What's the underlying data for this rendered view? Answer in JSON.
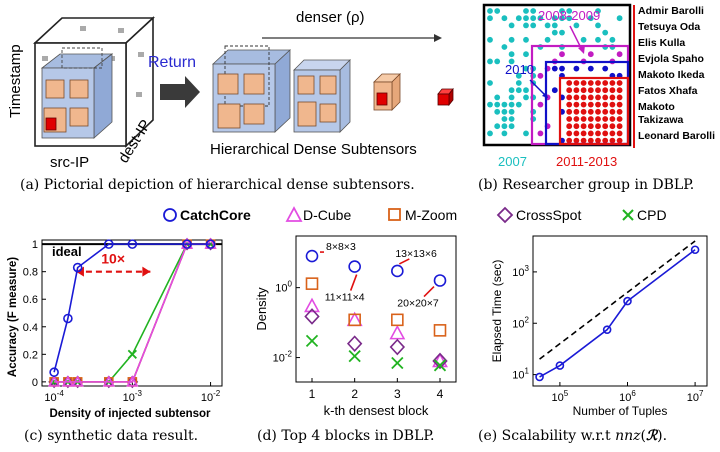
{
  "panel_a": {
    "axis_timestamp": "Timestamp",
    "axis_src": "src-IP",
    "axis_dest": "dest-IP",
    "return_label": "Return",
    "denser_label": "denser (ρ)",
    "subtensors_label": "Hierarchical Dense Subtensors",
    "caption": "(a) Pictorial depiction of hierarchical dense subtensors."
  },
  "panel_b": {
    "names": [
      "Admir Barolli",
      "Tetsuya Oda",
      "Elis Kulla",
      "Evjola Spaho",
      "Makoto Ikeda",
      "Fatos Xhafa",
      "Makoto",
      "Takizawa",
      "Leonard Barolli"
    ],
    "label_2008": "2008-2009",
    "label_2010": "2010",
    "label_2007": "2007",
    "label_2011": "2011-2013",
    "caption": "(b) Researcher group in DBLP.",
    "colors": {
      "teal": "#1abfbf",
      "magenta": "#c21cc2",
      "blue": "#1010c8",
      "red": "#e01010"
    }
  },
  "legend": {
    "items": [
      {
        "label": "CatchCore",
        "color": "#1a1ad6",
        "marker": "circle"
      },
      {
        "label": "D-Cube",
        "color": "#e24ce2",
        "marker": "triangle"
      },
      {
        "label": "M-Zoom",
        "color": "#d9621a",
        "marker": "square"
      },
      {
        "label": "CrossSpot",
        "color": "#7a2a8a",
        "marker": "diamond"
      },
      {
        "label": "CPD",
        "color": "#21b321",
        "marker": "x"
      }
    ]
  },
  "chart_data": [
    {
      "type": "line",
      "title": "",
      "xlabel": "Density of injected subtensor",
      "ylabel": "Accuracy (F measure)",
      "xscale": "log",
      "xlim": [
        7e-05,
        0.014
      ],
      "ylim": [
        -0.03,
        1.03
      ],
      "xticks": [
        "10^{-4}",
        "10^{-3}",
        "10^{-2}"
      ],
      "yticks": [
        "0",
        "0.2",
        "0.4",
        "0.6",
        "0.8",
        "1"
      ],
      "annotations": [
        "ideal",
        "10×"
      ],
      "series": [
        {
          "name": "CatchCore",
          "x": [
            0.0001,
            0.00015,
            0.0002,
            0.0005,
            0.001,
            0.005,
            0.01
          ],
          "y": [
            0.07,
            0.46,
            0.83,
            1,
            1,
            1,
            1
          ]
        },
        {
          "name": "D-Cube",
          "x": [
            0.0001,
            0.00015,
            0.0002,
            0.0005,
            0.001,
            0.005,
            0.01
          ],
          "y": [
            0,
            0,
            0,
            0,
            0,
            1,
            1
          ]
        },
        {
          "name": "M-Zoom",
          "x": [
            0.0001,
            0.00015,
            0.0002,
            0.0005,
            0.001,
            0.005,
            0.01
          ],
          "y": [
            0,
            0,
            0,
            0,
            0,
            1,
            1
          ]
        },
        {
          "name": "CrossSpot",
          "x": [
            0.0001,
            0.00015,
            0.0002,
            0.0005,
            0.001,
            0.005,
            0.01
          ],
          "y": [
            0,
            0,
            0,
            0,
            0,
            1,
            1
          ]
        },
        {
          "name": "CPD",
          "x": [
            0.0001,
            0.00015,
            0.0002,
            0.0005,
            0.001,
            0.005,
            0.01
          ],
          "y": [
            0,
            0,
            0,
            0,
            0.2,
            1,
            1
          ]
        }
      ],
      "caption": "(c) synthetic data result."
    },
    {
      "type": "scatter",
      "title": "",
      "xlabel": "k-th densest block",
      "ylabel": "Density",
      "yscale": "log",
      "ylim": [
        0.002,
        30
      ],
      "categories": [
        "1",
        "2",
        "3",
        "4"
      ],
      "yticks": [
        "10^{-2}",
        "10^{0}"
      ],
      "annotations": [
        "8×8×3",
        "11×11×4",
        "13×13×6",
        "20×20×7"
      ],
      "series": [
        {
          "name": "CatchCore",
          "values": [
            8,
            4,
            3,
            1.6
          ]
        },
        {
          "name": "D-Cube",
          "values": [
            0.3,
            0.12,
            0.05,
            0.008
          ]
        },
        {
          "name": "M-Zoom",
          "values": [
            1.3,
            0.12,
            0.12,
            0.06
          ]
        },
        {
          "name": "CrossSpot",
          "values": [
            0.15,
            0.025,
            0.02,
            0.008
          ]
        },
        {
          "name": "CPD",
          "values": [
            0.03,
            0.011,
            0.007,
            0.006
          ]
        }
      ],
      "caption": "(d) Top 4 blocks in DBLP."
    },
    {
      "type": "line",
      "title": "",
      "xlabel": "Number of Tuples",
      "ylabel": "Elapsed Time (sec)",
      "xscale": "log",
      "yscale": "log",
      "xlim": [
        40000,
        15000000
      ],
      "ylim": [
        6,
        5000
      ],
      "xticks": [
        "10^{5}",
        "10^{6}",
        "10^{7}"
      ],
      "yticks": [
        "10^{1}",
        "10^{2}",
        "10^{3}"
      ],
      "series": [
        {
          "name": "CatchCore",
          "x": [
            50000,
            100000,
            500000,
            1000000,
            10000000
          ],
          "y": [
            9,
            15,
            75,
            270,
            2700
          ]
        }
      ],
      "caption_pre": "(e) Scalability w.r.t ",
      "caption_post": "."
    }
  ]
}
